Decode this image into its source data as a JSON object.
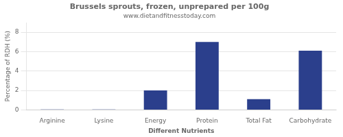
{
  "chart_data": {
    "type": "bar",
    "title": "Brussels sprouts, frozen, unprepared per 100g",
    "subtitle": "www.dietandfitnesstoday.com",
    "xlabel": "Different Nutrients",
    "ylabel": "Percentage of RDH (%)",
    "categories": [
      "Arginine",
      "Lysine",
      "Energy",
      "Protein",
      "Total Fat",
      "Carbohydrate"
    ],
    "values": [
      0.05,
      0.05,
      2.0,
      7.0,
      1.1,
      6.1
    ],
    "color": "#2b3f8c",
    "ylim": [
      0,
      9
    ],
    "yticks": [
      0,
      2,
      4,
      6,
      8
    ],
    "grid": true
  }
}
